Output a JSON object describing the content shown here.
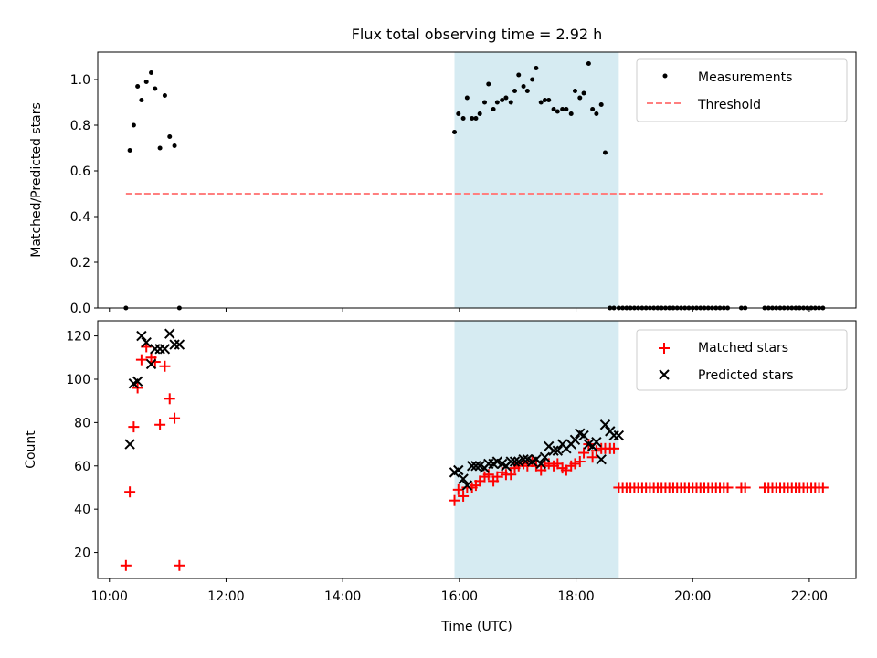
{
  "figure": {
    "title": "Flux total observing time = 2.92 h",
    "xlabel": "Time (UTC)"
  },
  "chart_data": [
    {
      "type": "scatter",
      "ylabel": "Matched/Predicted stars",
      "xlim": [
        "09:48",
        "22:48"
      ],
      "ylim": [
        0,
        1.12
      ],
      "yticks": [
        0.0,
        0.2,
        0.4,
        0.6,
        0.8,
        1.0
      ],
      "ytick_labels": [
        "0.0",
        "0.2",
        "0.4",
        "0.6",
        "0.8",
        "1.0"
      ],
      "grid": false,
      "legend": "top-right",
      "highlight_span": {
        "x": [
          "15:55",
          "18:44"
        ],
        "color": "#add8e6"
      },
      "series": [
        {
          "name": "Measurements",
          "kind": "dot",
          "color": "#000000",
          "x": [
            "10:17",
            "10:21",
            "10:25",
            "10:29",
            "10:33",
            "10:38",
            "10:43",
            "10:47",
            "10:52",
            "10:57",
            "11:02",
            "11:07",
            "11:12",
            "15:55",
            "15:59",
            "16:04",
            "16:08",
            "16:13",
            "16:17",
            "16:21",
            "16:26",
            "16:30",
            "16:35",
            "16:39",
            "16:44",
            "16:48",
            "16:53",
            "16:57",
            "17:01",
            "17:06",
            "17:10",
            "17:15",
            "17:19",
            "17:24",
            "17:28",
            "17:32",
            "17:37",
            "17:41",
            "17:46",
            "17:50",
            "17:55",
            "17:59",
            "18:04",
            "18:08",
            "18:13",
            "18:17",
            "18:21",
            "18:26",
            "18:30",
            "18:35",
            "18:39",
            "18:44",
            "18:48",
            "18:52",
            "18:56",
            "19:00",
            "19:04",
            "19:08",
            "19:12",
            "19:16",
            "19:20",
            "19:24",
            "19:28",
            "19:32",
            "19:36",
            "19:40",
            "19:44",
            "19:48",
            "19:52",
            "19:56",
            "20:00",
            "20:04",
            "20:08",
            "20:12",
            "20:16",
            "20:20",
            "20:24",
            "20:28",
            "20:32",
            "20:36",
            "20:50",
            "20:54",
            "21:14",
            "21:18",
            "21:22",
            "21:26",
            "21:30",
            "21:34",
            "21:38",
            "21:42",
            "21:46",
            "21:50",
            "21:54",
            "21:58",
            "22:02",
            "22:06",
            "22:10",
            "22:14"
          ],
          "y": [
            0.0,
            0.69,
            0.8,
            0.97,
            0.91,
            0.99,
            1.03,
            0.96,
            0.7,
            0.93,
            0.75,
            0.71,
            0.0,
            0.77,
            0.85,
            0.83,
            0.92,
            0.83,
            0.83,
            0.85,
            0.9,
            0.98,
            0.87,
            0.9,
            0.91,
            0.92,
            0.9,
            0.95,
            1.02,
            0.97,
            0.95,
            1.0,
            1.05,
            0.9,
            0.91,
            0.91,
            0.87,
            0.86,
            0.87,
            0.87,
            0.85,
            0.95,
            0.92,
            0.94,
            1.07,
            0.87,
            0.85,
            0.89,
            0.68,
            0.0,
            0.0,
            0.0,
            0.0,
            0.0,
            0.0,
            0.0,
            0.0,
            0.0,
            0.0,
            0.0,
            0.0,
            0.0,
            0.0,
            0.0,
            0.0,
            0.0,
            0.0,
            0.0,
            0.0,
            0.0,
            0.0,
            0.0,
            0.0,
            0.0,
            0.0,
            0.0,
            0.0,
            0.0,
            0.0,
            0.0,
            0.0,
            0.0,
            0.0,
            0.0,
            0.0,
            0.0,
            0.0,
            0.0,
            0.0,
            0.0,
            0.0,
            0.0,
            0.0,
            0.0,
            0.0,
            0.0,
            0.0,
            0.0
          ]
        },
        {
          "name": "Threshold",
          "kind": "dashed-line",
          "color": "#ff7f7f",
          "x": [
            "10:17",
            "22:14"
          ],
          "y": [
            0.5,
            0.5
          ]
        }
      ]
    },
    {
      "type": "scatter",
      "ylabel": "Count",
      "xlim": [
        "09:48",
        "22:48"
      ],
      "ylim": [
        8,
        127
      ],
      "yticks": [
        20,
        40,
        60,
        80,
        100,
        120
      ],
      "ytick_labels": [
        "20",
        "40",
        "60",
        "80",
        "100",
        "120"
      ],
      "xticks": [
        "10:00",
        "12:00",
        "14:00",
        "16:00",
        "18:00",
        "20:00",
        "22:00"
      ],
      "xtick_labels": [
        "10:00",
        "12:00",
        "14:00",
        "16:00",
        "18:00",
        "20:00",
        "22:00"
      ],
      "grid": false,
      "legend": "top-right",
      "highlight_span": {
        "x": [
          "15:55",
          "18:44"
        ],
        "color": "#add8e6"
      },
      "series": [
        {
          "name": "Matched stars",
          "kind": "plus",
          "color": "#ff0000",
          "x": [
            "10:17",
            "10:21",
            "10:25",
            "10:29",
            "10:33",
            "10:38",
            "10:43",
            "10:47",
            "10:52",
            "10:57",
            "11:02",
            "11:07",
            "11:12",
            "15:55",
            "15:59",
            "16:04",
            "16:08",
            "16:13",
            "16:17",
            "16:21",
            "16:26",
            "16:30",
            "16:35",
            "16:39",
            "16:44",
            "16:48",
            "16:53",
            "16:57",
            "17:01",
            "17:06",
            "17:10",
            "17:15",
            "17:19",
            "17:24",
            "17:28",
            "17:32",
            "17:37",
            "17:41",
            "17:46",
            "17:50",
            "17:55",
            "17:59",
            "18:04",
            "18:08",
            "18:13",
            "18:17",
            "18:21",
            "18:26",
            "18:30",
            "18:35",
            "18:39",
            "18:44",
            "18:48",
            "18:52",
            "18:56",
            "19:00",
            "19:04",
            "19:08",
            "19:12",
            "19:16",
            "19:20",
            "19:24",
            "19:28",
            "19:32",
            "19:36",
            "19:40",
            "19:44",
            "19:48",
            "19:52",
            "19:56",
            "20:00",
            "20:04",
            "20:08",
            "20:12",
            "20:16",
            "20:20",
            "20:24",
            "20:28",
            "20:32",
            "20:36",
            "20:50",
            "20:54",
            "21:14",
            "21:18",
            "21:22",
            "21:26",
            "21:30",
            "21:34",
            "21:38",
            "21:42",
            "21:46",
            "21:50",
            "21:54",
            "21:58",
            "22:02",
            "22:06",
            "22:10",
            "22:14"
          ],
          "y": [
            14,
            48,
            78,
            96,
            109,
            115,
            110,
            108,
            79,
            106,
            91,
            82,
            14,
            44,
            49,
            46,
            50,
            50,
            51,
            53,
            55,
            56,
            53,
            55,
            57,
            56,
            56,
            59,
            60,
            61,
            60,
            62,
            60,
            58,
            60,
            61,
            60,
            61,
            59,
            58,
            60,
            61,
            62,
            66,
            70,
            64,
            67,
            68,
            68,
            68,
            68,
            50,
            50,
            50,
            50,
            50,
            50,
            50,
            50,
            50,
            50,
            50,
            50,
            50,
            50,
            50,
            50,
            50,
            50,
            50,
            50,
            50,
            50,
            50,
            50,
            50,
            50,
            50,
            50,
            50,
            50,
            50,
            50,
            50,
            50,
            50,
            50,
            50,
            50,
            50,
            50,
            50,
            50,
            50,
            50,
            50,
            50,
            50
          ]
        },
        {
          "name": "Predicted stars",
          "kind": "cross",
          "color": "#000000",
          "x": [
            "10:21",
            "10:25",
            "10:29",
            "10:33",
            "10:38",
            "10:43",
            "10:47",
            "10:52",
            "10:57",
            "11:02",
            "11:07",
            "11:12",
            "15:55",
            "15:59",
            "16:04",
            "16:08",
            "16:13",
            "16:17",
            "16:21",
            "16:26",
            "16:30",
            "16:35",
            "16:39",
            "16:44",
            "16:48",
            "16:53",
            "16:57",
            "17:01",
            "17:06",
            "17:10",
            "17:15",
            "17:19",
            "17:24",
            "17:28",
            "17:32",
            "17:37",
            "17:41",
            "17:46",
            "17:50",
            "17:55",
            "17:59",
            "18:04",
            "18:08",
            "18:13",
            "18:17",
            "18:21",
            "18:26",
            "18:30",
            "18:35",
            "18:39",
            "18:44"
          ],
          "y": [
            70,
            98,
            99,
            120,
            117,
            107,
            114,
            114,
            114,
            121,
            116,
            116,
            57,
            58,
            54,
            51,
            60,
            60,
            60,
            59,
            61,
            61,
            62,
            61,
            60,
            62,
            62,
            62,
            63,
            63,
            62,
            63,
            61,
            64,
            69,
            67,
            67,
            70,
            68,
            70,
            72,
            75,
            74,
            70,
            69,
            71,
            63,
            79,
            76,
            74,
            74
          ]
        }
      ]
    }
  ]
}
